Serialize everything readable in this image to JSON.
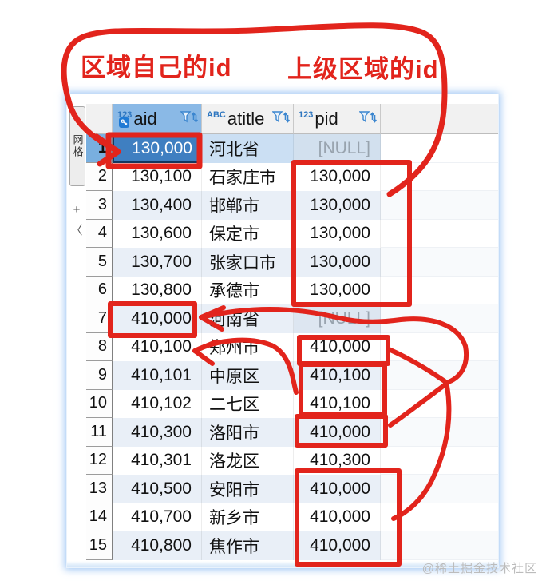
{
  "annotations": {
    "label_self_id": "区域自己的id",
    "label_parent_id": "上级区域的id",
    "pen_color": "#e2241c"
  },
  "side_panel": {
    "tab_label": "网格",
    "glyphs": [
      "+",
      "〈"
    ]
  },
  "table": {
    "columns": [
      {
        "name": "aid",
        "type_icon": "123",
        "has_key": true
      },
      {
        "name": "atitle",
        "type_icon": "ABC",
        "has_key": false
      },
      {
        "name": "pid",
        "type_icon": "123",
        "has_key": false
      }
    ],
    "rows": [
      {
        "n": "1",
        "aid": "130,000",
        "atitle": "河北省",
        "pid": "[NULL]",
        "selected": true
      },
      {
        "n": "2",
        "aid": "130,100",
        "atitle": "石家庄市",
        "pid": "130,000"
      },
      {
        "n": "3",
        "aid": "130,400",
        "atitle": "邯郸市",
        "pid": "130,000"
      },
      {
        "n": "4",
        "aid": "130,600",
        "atitle": "保定市",
        "pid": "130,000"
      },
      {
        "n": "5",
        "aid": "130,700",
        "atitle": "张家口市",
        "pid": "130,000"
      },
      {
        "n": "6",
        "aid": "130,800",
        "atitle": "承德市",
        "pid": "130,000"
      },
      {
        "n": "7",
        "aid": "410,000",
        "atitle": "河南省",
        "pid": "[NULL]"
      },
      {
        "n": "8",
        "aid": "410,100",
        "atitle": "郑州市",
        "pid": "410,000"
      },
      {
        "n": "9",
        "aid": "410,101",
        "atitle": "中原区",
        "pid": "410,100"
      },
      {
        "n": "10",
        "aid": "410,102",
        "atitle": "二七区",
        "pid": "410,100"
      },
      {
        "n": "11",
        "aid": "410,300",
        "atitle": "洛阳市",
        "pid": "410,000"
      },
      {
        "n": "12",
        "aid": "410,301",
        "atitle": "洛龙区",
        "pid": "410,300"
      },
      {
        "n": "13",
        "aid": "410,500",
        "atitle": "安阳市",
        "pid": "410,000"
      },
      {
        "n": "14",
        "aid": "410,700",
        "atitle": "新乡市",
        "pid": "410,000"
      },
      {
        "n": "15",
        "aid": "410,800",
        "atitle": "焦作市",
        "pid": "410,000"
      }
    ],
    "null_display": "[NULL]",
    "colors": {
      "selected_cell": "#3f7fc1",
      "selected_header": "#8ab9e6",
      "stripe": "#e9eff7",
      "icon_blue": "#2f77c0"
    }
  },
  "watermark": "@稀土掘金技术社区"
}
